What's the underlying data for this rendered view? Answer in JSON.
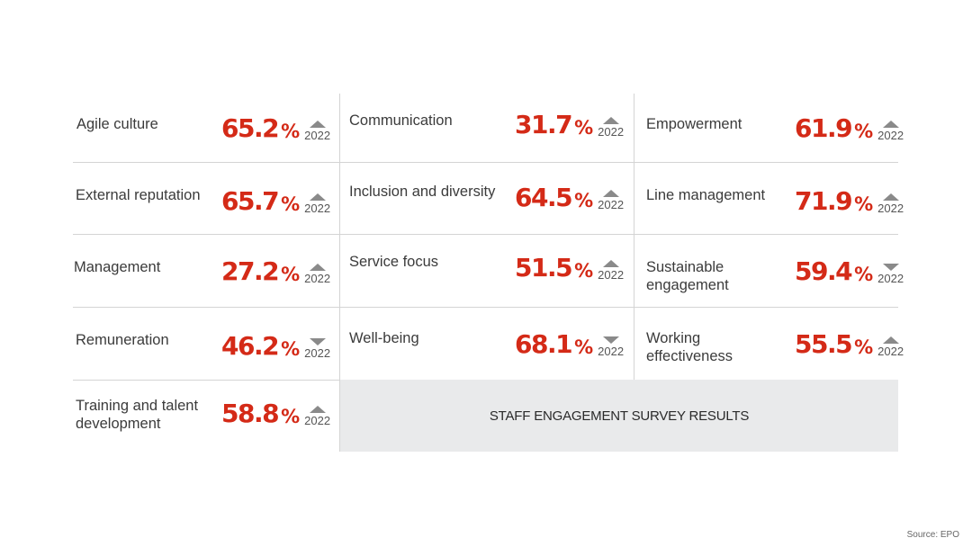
{
  "title": "STAFF ENGAGEMENT SURVEY RESULTS",
  "source": "Source: EPO",
  "comparison_year": "2022",
  "colors": {
    "value": "#d42a17",
    "trend": "#8a8a8a",
    "banner_bg": "#e9eaeb"
  },
  "metrics": [
    {
      "label": "Agile culture",
      "value": "65.2",
      "unit": "%",
      "trend": "up",
      "year": "2022"
    },
    {
      "label": "Communication",
      "value": "31.7",
      "unit": "%",
      "trend": "up",
      "year": "2022"
    },
    {
      "label": "Empowerment",
      "value": "61.9",
      "unit": "%",
      "trend": "up",
      "year": "2022"
    },
    {
      "label": "External reputation",
      "value": "65.7",
      "unit": "%",
      "trend": "up",
      "year": "2022"
    },
    {
      "label": "Inclusion and diversity",
      "value": "64.5",
      "unit": "%",
      "trend": "up",
      "year": "2022"
    },
    {
      "label": "Line management",
      "value": "71.9",
      "unit": "%",
      "trend": "up",
      "year": "2022"
    },
    {
      "label": "Management",
      "value": "27.2",
      "unit": "%",
      "trend": "up",
      "year": "2022"
    },
    {
      "label": "Service focus",
      "value": "51.5",
      "unit": "%",
      "trend": "up",
      "year": "2022"
    },
    {
      "label": "Sustainable engagement",
      "value": "59.4",
      "unit": "%",
      "trend": "down",
      "year": "2022"
    },
    {
      "label": "Remuneration",
      "value": "46.2",
      "unit": "%",
      "trend": "down",
      "year": "2022"
    },
    {
      "label": "Well-being",
      "value": "68.1",
      "unit": "%",
      "trend": "down",
      "year": "2022"
    },
    {
      "label": "Working effectiveness",
      "value": "55.5",
      "unit": "%",
      "trend": "up",
      "year": "2022"
    },
    {
      "label": "Training and talent development",
      "value": "58.8",
      "unit": "%",
      "trend": "up",
      "year": "2022"
    }
  ]
}
